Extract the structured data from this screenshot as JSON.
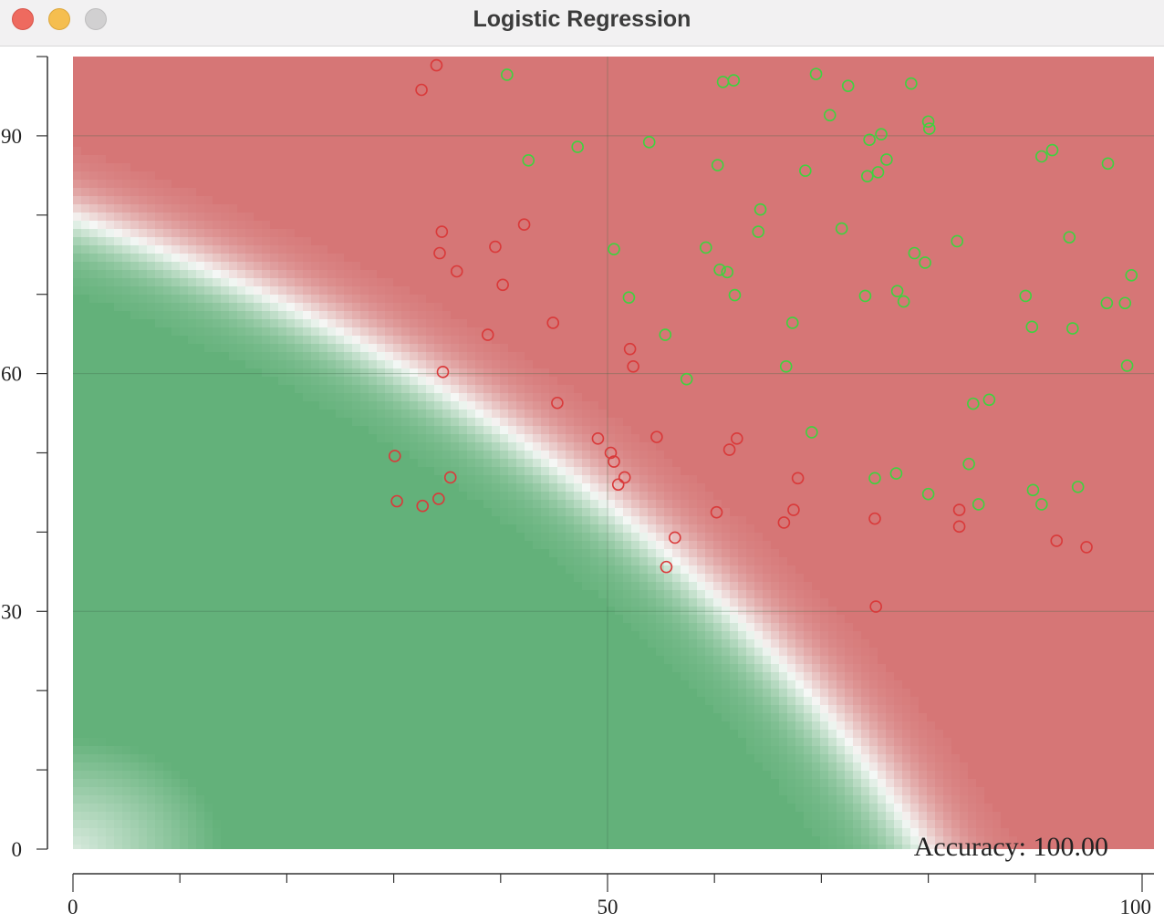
{
  "window": {
    "title": "Logistic Regression"
  },
  "colors": {
    "class_0_region": "#63b17a",
    "class_1_region": "#d67676",
    "class_0_point": "#d93a3a",
    "class_1_point": "#3fd23f",
    "gridline": "#3f6b4a",
    "axis": "#333333"
  },
  "icons": {
    "close": "close-icon",
    "minimize": "minimize-icon",
    "maximize": "maximize-icon"
  },
  "chart_data": {
    "type": "scatter",
    "title": "",
    "xlabel": "",
    "ylabel": "",
    "xlim": [
      0,
      100
    ],
    "ylim": [
      0,
      100
    ],
    "grid": true,
    "x_ticks": [
      0,
      10,
      20,
      30,
      40,
      50,
      60,
      70,
      80,
      90,
      100
    ],
    "x_tick_labels": [
      "0",
      "",
      "",
      "",
      "",
      "50",
      "",
      "",
      "",
      "",
      "100"
    ],
    "y_ticks": [
      0,
      10,
      20,
      30,
      40,
      50,
      60,
      70,
      80,
      90,
      100
    ],
    "y_tick_labels": [
      "0",
      "",
      "",
      "30",
      "",
      "",
      "60",
      "",
      "",
      "90",
      ""
    ],
    "annotation": "Accuracy: 100.00",
    "decision_boundary": {
      "model": "logistic",
      "w0": -25,
      "w1": 0.2,
      "w2": 0.2,
      "w11": 0.00143,
      "w22": 0.00143
    },
    "series": [
      {
        "class": 0,
        "points": [
          [
            34.0,
            98.9
          ],
          [
            32.6,
            95.8
          ],
          [
            34.5,
            77.9
          ],
          [
            34.3,
            75.2
          ],
          [
            35.9,
            72.9
          ],
          [
            42.2,
            78.8
          ],
          [
            39.5,
            76.0
          ],
          [
            40.2,
            71.2
          ],
          [
            38.8,
            64.9
          ],
          [
            44.9,
            66.4
          ],
          [
            34.6,
            60.2
          ],
          [
            45.3,
            56.3
          ],
          [
            30.1,
            49.6
          ],
          [
            30.3,
            43.9
          ],
          [
            32.7,
            43.3
          ],
          [
            34.2,
            44.2
          ],
          [
            35.3,
            46.9
          ],
          [
            49.1,
            51.8
          ],
          [
            50.3,
            50.0
          ],
          [
            50.6,
            48.9
          ],
          [
            51.0,
            46.0
          ],
          [
            51.6,
            46.9
          ],
          [
            52.1,
            63.1
          ],
          [
            52.4,
            60.9
          ],
          [
            54.6,
            52.0
          ],
          [
            56.3,
            39.3
          ],
          [
            55.5,
            35.6
          ],
          [
            60.2,
            42.5
          ],
          [
            61.4,
            50.4
          ],
          [
            62.1,
            51.8
          ],
          [
            66.5,
            41.2
          ],
          [
            67.4,
            42.8
          ],
          [
            67.8,
            46.8
          ],
          [
            75.0,
            41.7
          ],
          [
            75.1,
            30.6
          ],
          [
            82.9,
            42.8
          ],
          [
            82.9,
            40.7
          ],
          [
            92.0,
            38.9
          ],
          [
            94.8,
            38.1
          ]
        ]
      },
      {
        "class": 1,
        "points": [
          [
            40.6,
            97.7
          ],
          [
            42.6,
            86.9
          ],
          [
            47.2,
            88.6
          ],
          [
            50.6,
            75.7
          ],
          [
            52.0,
            69.6
          ],
          [
            53.9,
            89.2
          ],
          [
            55.4,
            64.9
          ],
          [
            57.4,
            59.3
          ],
          [
            59.2,
            75.9
          ],
          [
            60.3,
            86.3
          ],
          [
            60.5,
            73.1
          ],
          [
            61.2,
            72.8
          ],
          [
            61.9,
            69.9
          ],
          [
            60.8,
            96.8
          ],
          [
            61.8,
            97.0
          ],
          [
            64.3,
            80.7
          ],
          [
            64.1,
            77.9
          ],
          [
            66.7,
            60.9
          ],
          [
            67.3,
            66.4
          ],
          [
            68.5,
            85.6
          ],
          [
            69.1,
            52.6
          ],
          [
            69.5,
            97.8
          ],
          [
            70.8,
            92.6
          ],
          [
            71.9,
            78.3
          ],
          [
            72.5,
            96.3
          ],
          [
            74.1,
            69.8
          ],
          [
            74.3,
            84.9
          ],
          [
            74.5,
            89.5
          ],
          [
            75.0,
            46.8
          ],
          [
            75.3,
            85.4
          ],
          [
            75.6,
            90.2
          ],
          [
            76.1,
            87.0
          ],
          [
            77.0,
            47.4
          ],
          [
            77.1,
            70.4
          ],
          [
            77.7,
            69.1
          ],
          [
            78.4,
            96.6
          ],
          [
            78.7,
            75.2
          ],
          [
            79.7,
            74.0
          ],
          [
            80.0,
            91.8
          ],
          [
            80.1,
            90.9
          ],
          [
            80.0,
            44.8
          ],
          [
            82.7,
            76.7
          ],
          [
            83.8,
            48.6
          ],
          [
            84.2,
            56.2
          ],
          [
            84.7,
            43.5
          ],
          [
            85.7,
            56.7
          ],
          [
            89.1,
            69.8
          ],
          [
            89.7,
            65.9
          ],
          [
            89.8,
            45.3
          ],
          [
            90.6,
            43.5
          ],
          [
            90.6,
            87.4
          ],
          [
            91.6,
            88.2
          ],
          [
            93.2,
            77.2
          ],
          [
            93.5,
            65.7
          ],
          [
            94.0,
            45.7
          ],
          [
            96.7,
            68.9
          ],
          [
            96.8,
            86.5
          ],
          [
            98.4,
            68.9
          ],
          [
            98.6,
            61.0
          ],
          [
            99.0,
            72.4
          ]
        ]
      }
    ]
  }
}
